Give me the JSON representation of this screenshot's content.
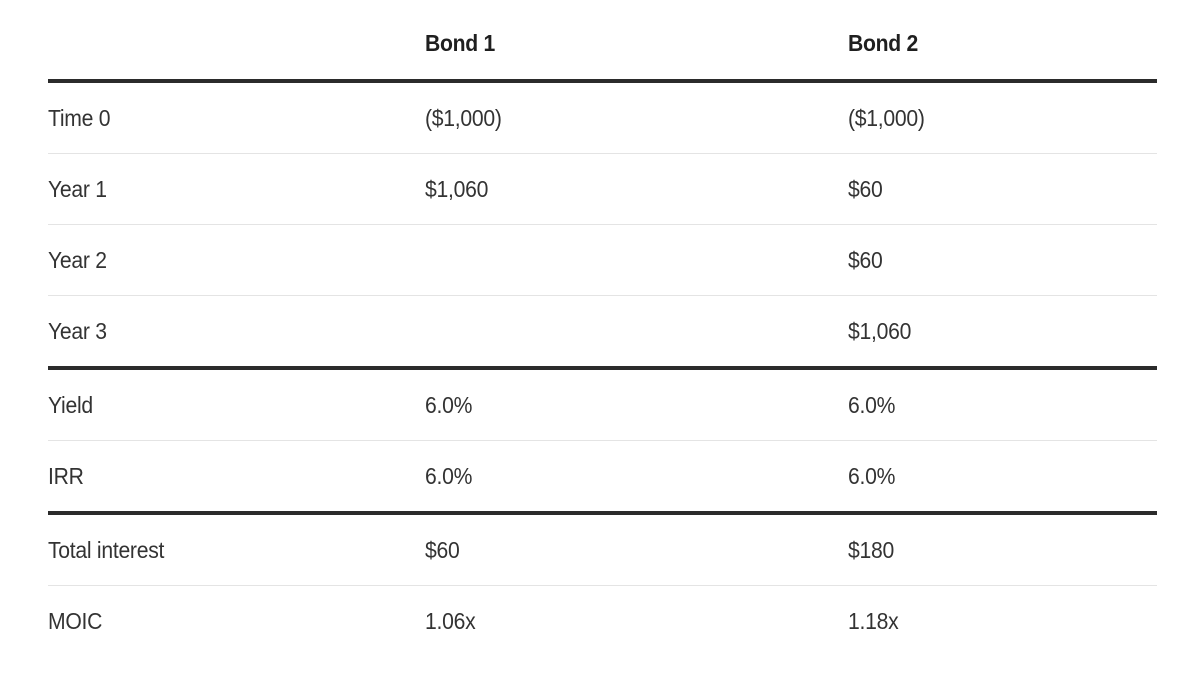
{
  "chart_data": {
    "type": "table",
    "title": "",
    "columns": [
      "",
      "Bond 1",
      "Bond 2"
    ],
    "rows": [
      [
        "Time 0",
        "($1,000)",
        "($1,000)"
      ],
      [
        "Year 1",
        "$1,060",
        "$60"
      ],
      [
        "Year 2",
        "",
        "$60"
      ],
      [
        "Year 3",
        "",
        "$1,060"
      ],
      [
        "Yield",
        "6.0%",
        "6.0%"
      ],
      [
        "IRR",
        "6.0%",
        "6.0%"
      ],
      [
        "Total interest",
        "$60",
        "$180"
      ],
      [
        "MOIC",
        "1.06x",
        "1.18x"
      ]
    ],
    "section_breaks_before_rows": [
      4,
      6
    ],
    "layout": "three-column comparison table; thick horizontal rules under header, above Yield row, and above Total interest row; thin rules between other rows; no outer vertical borders"
  },
  "colors": {
    "background": "#ffffff",
    "header_text": "#1f1f1f",
    "body_text": "#333333",
    "rule_thick": "#2b2b2b",
    "rule_thin": "#e4e4e4"
  }
}
